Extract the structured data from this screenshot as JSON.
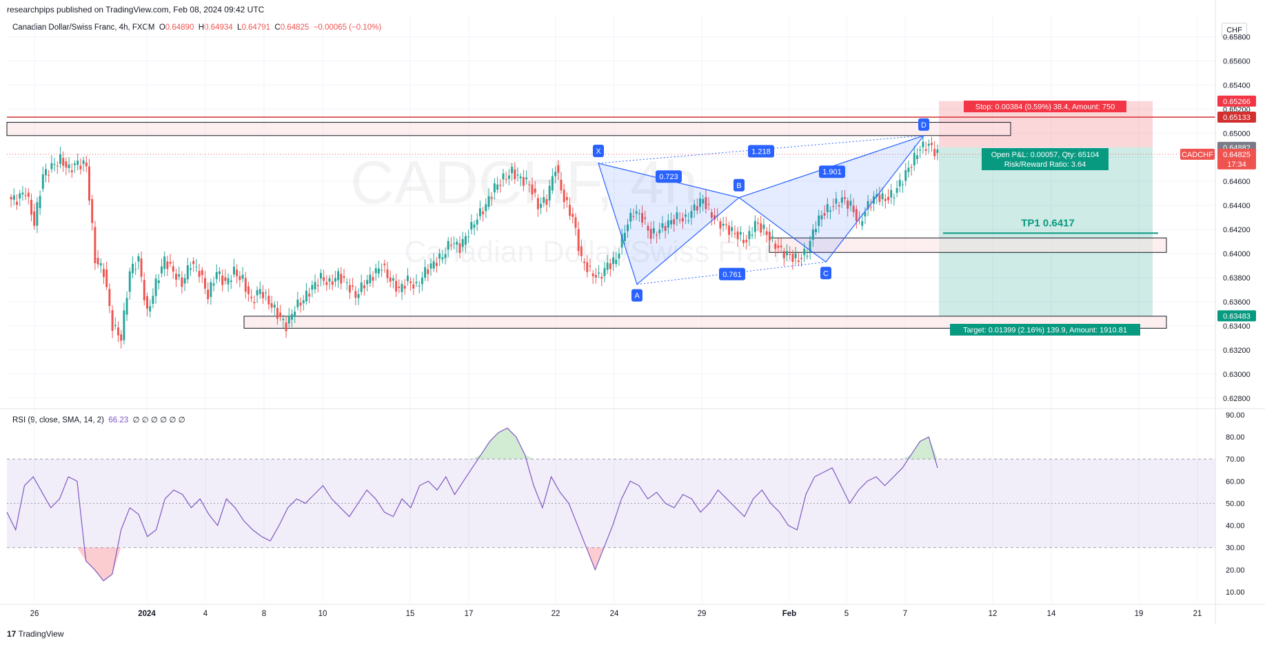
{
  "header": {
    "published": "researchpips published on TradingView.com, Feb 08, 2024 09:42 UTC",
    "symbol_desc": "Canadian Dollar/Swiss Franc, 4h, FXCM",
    "ohlc": {
      "o": "0.64890",
      "h": "0.64934",
      "l": "0.64791",
      "c": "0.64825",
      "chg": "−0.00065 (−0.10%)"
    },
    "currency": "CHF"
  },
  "watermark": {
    "line1": "CADCHF, 4h",
    "line2": "Canadian Dollar/Swiss Franc"
  },
  "rsi_legend": {
    "label": "RSI (9, close, SMA, 14, 2)",
    "value": "66.23",
    "placeholders": "∅ ∅ ∅ ∅ ∅ ∅"
  },
  "footer": {
    "brand": "TradingView"
  },
  "chart_data": [
    {
      "type": "candlestick",
      "name": "CADCHF 4h",
      "ylim": [
        0.6273,
        0.6598
      ],
      "y_ticks": [
        "0.65800",
        "0.65600",
        "0.65400",
        "0.65200",
        "0.65000",
        "0.64800",
        "0.64600",
        "0.64400",
        "0.64200",
        "0.64000",
        "0.63800",
        "0.63600",
        "0.63400",
        "0.63200",
        "0.63000",
        "0.62800"
      ],
      "x_ticks": [
        "26",
        "2024",
        "4",
        "8",
        "10",
        "15",
        "17",
        "22",
        "24",
        "29",
        "Feb",
        "5",
        "7",
        "12",
        "14",
        "19",
        "21"
      ],
      "close_path": [
        0.6445,
        0.6452,
        0.6425,
        0.6465,
        0.6472,
        0.6478,
        0.647,
        0.6475,
        0.6473,
        0.6395,
        0.6385,
        0.634,
        0.633,
        0.6385,
        0.6395,
        0.635,
        0.6375,
        0.6395,
        0.6385,
        0.6375,
        0.6392,
        0.6385,
        0.6365,
        0.6385,
        0.6375,
        0.6385,
        0.6378,
        0.636,
        0.637,
        0.636,
        0.635,
        0.634,
        0.6355,
        0.6362,
        0.6372,
        0.638,
        0.6375,
        0.6382,
        0.6375,
        0.6365,
        0.6375,
        0.6382,
        0.639,
        0.6378,
        0.637,
        0.6378,
        0.6372,
        0.6385,
        0.6392,
        0.6398,
        0.641,
        0.6405,
        0.6418,
        0.643,
        0.644,
        0.6455,
        0.6462,
        0.6468,
        0.6462,
        0.6458,
        0.644,
        0.6445,
        0.6472,
        0.6445,
        0.643,
        0.6395,
        0.6385,
        0.638,
        0.639,
        0.6395,
        0.642,
        0.6435,
        0.643,
        0.6415,
        0.642,
        0.6425,
        0.643,
        0.6428,
        0.6438,
        0.6445,
        0.6432,
        0.6425,
        0.642,
        0.6415,
        0.641,
        0.6425,
        0.642,
        0.641,
        0.6402,
        0.6398,
        0.6395,
        0.6402,
        0.6425,
        0.6435,
        0.644,
        0.6445,
        0.644,
        0.6425,
        0.644,
        0.6448,
        0.6445,
        0.645,
        0.6462,
        0.6475,
        0.6488,
        0.649,
        0.6483
      ],
      "rsi": {
        "ylim": [
          5,
          90
        ],
        "y_ticks": [
          "90.00",
          "80.00",
          "70.00",
          "60.00",
          "50.00",
          "40.00",
          "30.00",
          "20.00",
          "10.00"
        ],
        "overbought": 70,
        "middle": 50,
        "oversold": 30,
        "values": [
          46,
          38,
          58,
          62,
          55,
          48,
          52,
          62,
          60,
          24,
          20,
          15,
          18,
          38,
          48,
          45,
          35,
          38,
          52,
          56,
          54,
          48,
          52,
          45,
          40,
          52,
          48,
          42,
          38,
          35,
          33,
          40,
          48,
          52,
          50,
          54,
          58,
          52,
          48,
          44,
          50,
          56,
          52,
          46,
          44,
          52,
          48,
          58,
          60,
          56,
          62,
          54,
          60,
          66,
          72,
          78,
          82,
          84,
          80,
          72,
          58,
          48,
          62,
          55,
          50,
          40,
          30,
          20,
          30,
          40,
          52,
          60,
          58,
          52,
          55,
          50,
          48,
          54,
          52,
          46,
          50,
          56,
          52,
          48,
          44,
          52,
          56,
          50,
          46,
          40,
          38,
          54,
          62,
          64,
          66,
          58,
          50,
          56,
          60,
          62,
          58,
          62,
          66,
          72,
          78,
          80,
          66
        ]
      }
    }
  ],
  "annotations": {
    "pattern": {
      "points": [
        "X",
        "A",
        "B",
        "C",
        "D"
      ],
      "ratios": [
        "0.723",
        "1.218",
        "0.761",
        "1.901"
      ]
    },
    "stop": "Stop: 0.00384 (0.59%) 38.4, Amount: 750",
    "open_pnl": "Open P&L: 0.00057, Qty: 65104",
    "risk_reward": "Risk/Reward Ratio: 3.64",
    "target": "Target: 0.01399 (2.16%) 139.9, Amount: 1910.81",
    "tp1": "TP1 0.6417",
    "stop_price": 0.65266,
    "entry_price": 0.64882,
    "target_price": 0.63483,
    "resistance_price": 0.65133,
    "tp1_price": 0.6417
  },
  "price_labels": {
    "stop": "0.65266",
    "resistance": "0.65133",
    "entry": "0.64882",
    "symbol": "CADCHF",
    "current": "0.64825",
    "countdown": "17:34",
    "target": "0.63483"
  },
  "colors": {
    "up": "#26a69a",
    "down": "#ef5350",
    "rsi": "#7e57c2",
    "pattern": "#2962ff"
  }
}
